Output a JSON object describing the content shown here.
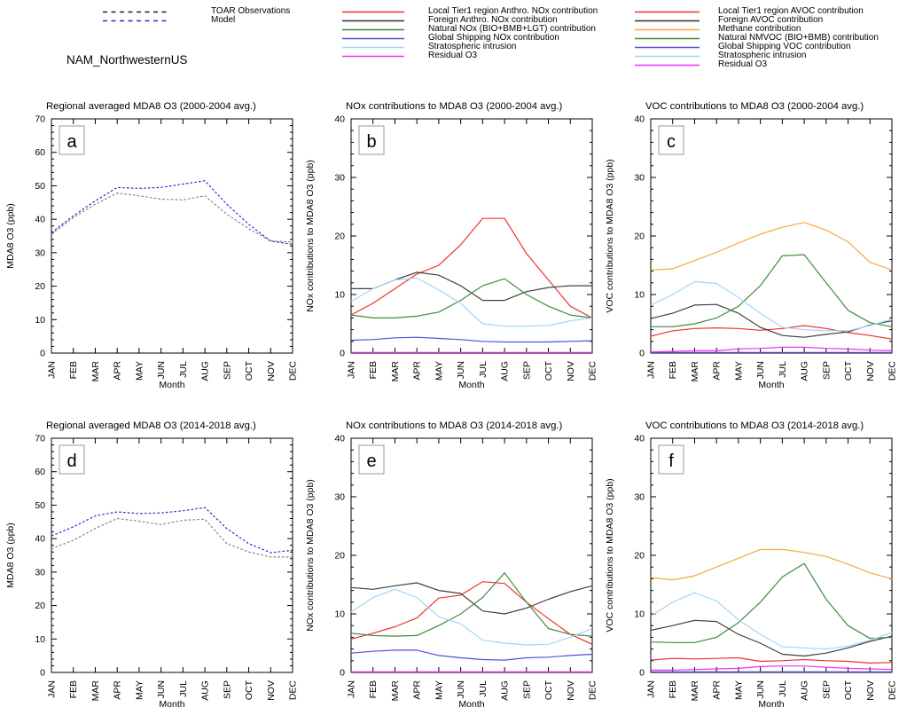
{
  "page": {
    "region_label": "NAM_NorthwesternUS"
  },
  "months": [
    "JAN",
    "FEB",
    "MAR",
    "APR",
    "MAY",
    "JUN",
    "JUL",
    "AUG",
    "SEP",
    "OCT",
    "NOV",
    "DEC"
  ],
  "legends": {
    "obs_model": {
      "items": [
        {
          "label": "TOAR Observations",
          "color": "#222222",
          "dash": "5,4.5"
        },
        {
          "label": "Model",
          "color": "#2b2bd0",
          "dash": "5,4.5"
        }
      ]
    },
    "nox": {
      "items": [
        {
          "label": "Local Tier1 region Anthro. NOx contribution",
          "color": "#f03030"
        },
        {
          "label": "Foreign Anthro. NOx contribution",
          "color": "#303030"
        },
        {
          "label": "Natural NOx (BIO+BMB+LGT) contribution",
          "color": "#3f8c3f"
        },
        {
          "label": "Global Shipping NOx contribution",
          "color": "#5050e0"
        },
        {
          "label": "Stratospheric intrusion",
          "color": "#a5d5f5"
        },
        {
          "label": "Residual O3",
          "color": "#f030f0"
        }
      ]
    },
    "voc": {
      "items": [
        {
          "label": "Local Tier1 region AVOC contribution",
          "color": "#f03030"
        },
        {
          "label": "Foreign AVOC contribution",
          "color": "#303030"
        },
        {
          "label": "Methane contribution",
          "color": "#f8a83c"
        },
        {
          "label": "Natural NMVOC (BIO+BMB) contribution",
          "color": "#3f8c3f"
        },
        {
          "label": "Global Shipping VOC contribution",
          "color": "#5050e0"
        },
        {
          "label": "Stratospheric intrusion",
          "color": "#a5d5f5"
        },
        {
          "label": "Residual O3",
          "color": "#f030f0"
        }
      ]
    }
  },
  "chart_data": [
    {
      "letter": "a",
      "type": "line",
      "dashed": true,
      "title": "Regional averaged MDA8 O3 (2000-2004 avg.)",
      "xlabel": "Month",
      "ylabel": "MDA8 O3 (ppb)",
      "ylim": [
        0,
        70
      ],
      "ytick_step": 10,
      "yminor_step": 2,
      "grid": false,
      "series": [
        {
          "name": "TOAR Observations",
          "color": "#828282",
          "values": [
            35.5,
            40.5,
            44.5,
            47.8,
            47.0,
            46.0,
            45.8,
            47.0,
            41.5,
            37.2,
            33.5,
            33.2
          ]
        },
        {
          "name": "Model",
          "color": "#2b2bd0",
          "values": [
            36.0,
            41.0,
            45.5,
            49.5,
            49.2,
            49.5,
            50.5,
            51.5,
            44.5,
            38.5,
            33.5,
            32.5
          ]
        }
      ]
    },
    {
      "letter": "b",
      "type": "line",
      "dashed": false,
      "title": "NOx contributions to MDA8 O3 (2000-2004 avg.)",
      "xlabel": "Month",
      "ylabel": "NOx contributions to MDA8 O3 (ppb)",
      "ylim": [
        0,
        40
      ],
      "ytick_step": 10,
      "yminor_step": 2,
      "grid": false,
      "series": [
        {
          "name": "Local Tier1 region Anthro. NOx contribution",
          "color": "#f03030",
          "values": [
            6.5,
            8.5,
            11.0,
            13.5,
            15.0,
            18.5,
            23.0,
            23.0,
            17.0,
            12.5,
            8.0,
            6.0
          ]
        },
        {
          "name": "Foreign Anthro. NOx contribution",
          "color": "#404040",
          "values": [
            11.0,
            11.0,
            12.5,
            13.8,
            13.3,
            11.5,
            9.0,
            9.0,
            10.5,
            11.2,
            11.5,
            11.5
          ]
        },
        {
          "name": "Natural NOx (BIO+BMB+LGT) contribution",
          "color": "#3f8c3f",
          "values": [
            6.5,
            6.0,
            6.0,
            6.3,
            7.0,
            9.0,
            11.5,
            12.7,
            10.0,
            8.0,
            6.5,
            6.0
          ]
        },
        {
          "name": "Global Shipping NOx contribution",
          "color": "#5050e0",
          "values": [
            2.2,
            2.3,
            2.6,
            2.7,
            2.5,
            2.3,
            2.0,
            1.9,
            1.9,
            1.9,
            2.0,
            2.1
          ]
        },
        {
          "name": "Stratospheric intrusion",
          "color": "#a5d5f5",
          "values": [
            8.8,
            11.0,
            12.5,
            12.8,
            10.8,
            8.5,
            5.0,
            4.6,
            4.6,
            4.7,
            5.5,
            6.0
          ]
        },
        {
          "name": "Residual O3",
          "color": "#f030f0",
          "values": [
            0.1,
            0.1,
            0.1,
            0.1,
            0.1,
            0.1,
            0.1,
            0.1,
            0.1,
            0.1,
            0.1,
            0.1
          ]
        }
      ]
    },
    {
      "letter": "c",
      "type": "line",
      "dashed": false,
      "title": "VOC contributions to MDA8 O3 (2000-2004 avg.)",
      "xlabel": "Month",
      "ylabel": "VOC contributions to MDA8 O3 (ppb)",
      "ylim": [
        0,
        40
      ],
      "ytick_step": 10,
      "yminor_step": 2,
      "grid": false,
      "series": [
        {
          "name": "Local Tier1 region AVOC contribution",
          "color": "#f03030",
          "values": [
            2.9,
            3.8,
            4.2,
            4.3,
            4.2,
            3.9,
            4.2,
            4.7,
            4.2,
            3.5,
            3.0,
            2.4
          ]
        },
        {
          "name": "Foreign AVOC contribution",
          "color": "#404040",
          "values": [
            5.9,
            6.8,
            8.2,
            8.3,
            6.8,
            4.4,
            3.0,
            2.7,
            3.2,
            3.6,
            4.8,
            5.5
          ]
        },
        {
          "name": "Methane contribution",
          "color": "#f8a83c",
          "values": [
            14.2,
            14.4,
            15.8,
            17.2,
            18.8,
            20.3,
            21.5,
            22.3,
            21.0,
            19.0,
            15.5,
            14.2
          ]
        },
        {
          "name": "Natural NMVOC (BIO+BMB) contribution",
          "color": "#3f8c3f",
          "values": [
            4.5,
            4.5,
            5.0,
            6.0,
            8.0,
            11.5,
            16.6,
            16.8,
            12.0,
            7.3,
            5.2,
            4.5
          ]
        },
        {
          "name": "Global Shipping VOC contribution",
          "color": "#5050e0",
          "values": [
            0.1,
            0.1,
            0.1,
            0.1,
            0.1,
            0.1,
            0.1,
            0.1,
            0.1,
            0.1,
            0.1,
            0.1
          ]
        },
        {
          "name": "Stratospheric intrusion",
          "color": "#a5d5f5",
          "values": [
            8.2,
            10.0,
            12.2,
            11.9,
            9.5,
            6.8,
            4.4,
            4.0,
            3.8,
            3.8,
            4.7,
            5.8
          ]
        },
        {
          "name": "Residual O3",
          "color": "#f030f0",
          "values": [
            0.2,
            0.3,
            0.4,
            0.4,
            0.7,
            0.8,
            1.0,
            1.0,
            0.8,
            0.7,
            0.5,
            0.4
          ]
        }
      ]
    },
    {
      "letter": "d",
      "type": "line",
      "dashed": true,
      "title": "Regional averaged MDA8 O3 (2014-2018 avg.)",
      "xlabel": "Month",
      "ylabel": "MDA8 O3 (ppb)",
      "ylim": [
        0,
        70
      ],
      "ytick_step": 10,
      "yminor_step": 2,
      "grid": false,
      "series": [
        {
          "name": "TOAR Observations",
          "color": "#828282",
          "values": [
            37.0,
            39.5,
            43.0,
            46.0,
            45.2,
            44.2,
            45.5,
            45.8,
            38.5,
            36.0,
            34.5,
            34.5
          ]
        },
        {
          "name": "Model",
          "color": "#2b2bd0",
          "values": [
            40.8,
            43.5,
            46.8,
            48.0,
            47.5,
            47.7,
            48.3,
            49.3,
            43.0,
            38.5,
            35.8,
            36.5
          ]
        }
      ]
    },
    {
      "letter": "e",
      "type": "line",
      "dashed": false,
      "title": "NOx contributions to MDA8 O3 (2014-2018 avg.)",
      "xlabel": "Month",
      "ylabel": "NOx contributions to MDA8 O3 (ppb)",
      "ylim": [
        0,
        40
      ],
      "ytick_step": 10,
      "yminor_step": 2,
      "grid": false,
      "series": [
        {
          "name": "Local Tier1 region Anthro. NOx contribution",
          "color": "#f03030",
          "values": [
            5.7,
            6.7,
            7.8,
            9.3,
            12.7,
            13.2,
            15.5,
            15.2,
            12.0,
            9.2,
            6.5,
            4.8
          ]
        },
        {
          "name": "Foreign Anthro. NOx contribution",
          "color": "#404040",
          "values": [
            14.5,
            14.2,
            14.8,
            15.3,
            14.0,
            13.5,
            10.5,
            10.0,
            11.0,
            12.5,
            13.8,
            14.8
          ]
        },
        {
          "name": "Natural NOx (BIO+BMB+LGT) contribution",
          "color": "#3f8c3f",
          "values": [
            6.7,
            6.3,
            6.2,
            6.3,
            8.0,
            10.0,
            12.8,
            17.0,
            12.0,
            7.5,
            6.5,
            6.2
          ]
        },
        {
          "name": "Global Shipping NOx contribution",
          "color": "#5050e0",
          "values": [
            3.3,
            3.6,
            3.8,
            3.8,
            2.9,
            2.5,
            2.2,
            2.1,
            2.5,
            2.6,
            2.9,
            3.1
          ]
        },
        {
          "name": "Stratospheric intrusion",
          "color": "#a5d5f5",
          "values": [
            10.3,
            12.8,
            14.2,
            12.8,
            9.5,
            8.3,
            5.5,
            5.0,
            4.7,
            4.8,
            6.0,
            7.5
          ]
        },
        {
          "name": "Residual O3",
          "color": "#f030f0",
          "values": [
            0.1,
            0.1,
            0.1,
            0.1,
            0.1,
            0.1,
            0.1,
            0.1,
            0.1,
            0.1,
            0.1,
            0.1
          ]
        }
      ]
    },
    {
      "letter": "f",
      "type": "line",
      "dashed": false,
      "title": "VOC contributions to MDA8 O3 (2014-2018 avg.)",
      "xlabel": "Month",
      "ylabel": "VOC contributions to MDA8 O3 (ppb)",
      "ylim": [
        0,
        40
      ],
      "ytick_step": 10,
      "yminor_step": 2,
      "grid": false,
      "series": [
        {
          "name": "Local Tier1 region AVOC contribution",
          "color": "#f03030",
          "values": [
            2.1,
            2.4,
            2.3,
            2.4,
            2.5,
            1.9,
            2.0,
            2.2,
            2.0,
            1.9,
            1.6,
            1.7
          ]
        },
        {
          "name": "Foreign AVOC contribution",
          "color": "#404040",
          "values": [
            7.2,
            8.0,
            8.9,
            8.7,
            6.5,
            5.0,
            3.1,
            2.8,
            3.3,
            4.2,
            5.3,
            6.2
          ]
        },
        {
          "name": "Methane contribution",
          "color": "#f8a83c",
          "values": [
            16.2,
            15.8,
            16.5,
            18.0,
            19.5,
            21.0,
            21.0,
            20.5,
            19.8,
            18.5,
            17.0,
            16.0
          ]
        },
        {
          "name": "Natural NMVOC (BIO+BMB) contribution",
          "color": "#3f8c3f",
          "values": [
            5.2,
            5.1,
            5.1,
            6.0,
            8.5,
            12.0,
            16.3,
            18.6,
            12.5,
            8.0,
            5.8,
            6.0
          ]
        },
        {
          "name": "Global Shipping VOC contribution",
          "color": "#5050e0",
          "values": [
            0.1,
            0.1,
            0.1,
            0.1,
            0.1,
            0.1,
            0.1,
            0.1,
            0.1,
            0.1,
            0.1,
            0.1
          ]
        },
        {
          "name": "Stratospheric intrusion",
          "color": "#a5d5f5",
          "values": [
            9.6,
            12.0,
            13.6,
            12.2,
            9.0,
            6.5,
            4.4,
            4.2,
            4.0,
            4.5,
            5.5,
            6.8
          ]
        },
        {
          "name": "Residual O3",
          "color": "#f030f0",
          "values": [
            0.4,
            0.4,
            0.5,
            0.6,
            0.7,
            1.0,
            1.1,
            1.1,
            0.9,
            0.7,
            0.6,
            0.5
          ]
        }
      ]
    }
  ]
}
